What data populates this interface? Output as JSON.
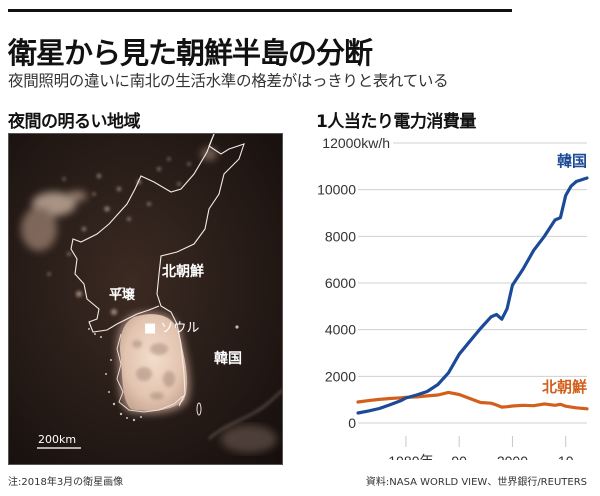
{
  "header": {
    "title": "衛星から見た朝鮮半島の分断",
    "subtitle": "夜間照明の違いに南北の生活水準の格差がはっきりと表れている"
  },
  "map_panel": {
    "title": "夜間の明るい地域",
    "labels": {
      "north_korea": "北朝鮮",
      "pyongyang": "平壌",
      "seoul": "■ ソウル",
      "south_korea": "韓国"
    },
    "scale_bar": "200km",
    "note": "注:2018年3月の衛星画像"
  },
  "chart_panel": {
    "title": "1人当たり電力消費量",
    "source": "資料:NASA WORLD VIEW、世界銀行/REUTERS"
  },
  "colors": {
    "south_korea": "#1c4a96",
    "north_korea": "#d2601c",
    "grid": "#d0d0d0"
  },
  "chart_data": {
    "type": "line",
    "title": "1人当たり電力消費量",
    "xlabel": "",
    "ylabel": "kw/h",
    "ylim": [
      0,
      12000
    ],
    "xlim": [
      1971,
      2014
    ],
    "grid": true,
    "y_ticks": [
      "0",
      "2000",
      "4000",
      "6000",
      "8000",
      "10000",
      "12000kw/h"
    ],
    "y_tick_values": [
      0,
      2000,
      4000,
      6000,
      8000,
      10000,
      12000
    ],
    "x_ticks": [
      "1980年",
      "90",
      "2000",
      "10"
    ],
    "x_tick_values": [
      1980,
      1990,
      2000,
      2010
    ],
    "legend_position": "inline-right",
    "x": [
      1971,
      1973,
      1975,
      1977,
      1979,
      1980,
      1982,
      1984,
      1986,
      1988,
      1990,
      1992,
      1994,
      1996,
      1997,
      1998,
      1999,
      2000,
      2002,
      2004,
      2006,
      2008,
      2009,
      2010,
      2011,
      2012,
      2014
    ],
    "series": [
      {
        "name": "韓国",
        "values": [
          430,
          520,
          620,
          780,
          950,
          1070,
          1200,
          1350,
          1650,
          2150,
          2950,
          3500,
          4050,
          4550,
          4650,
          4450,
          4900,
          5900,
          6600,
          7400,
          8000,
          8700,
          8800,
          9750,
          10150,
          10350,
          10500
        ]
      },
      {
        "name": "北朝鮮",
        "values": [
          900,
          960,
          1010,
          1050,
          1080,
          1100,
          1120,
          1160,
          1200,
          1310,
          1220,
          1050,
          880,
          850,
          770,
          680,
          700,
          730,
          760,
          740,
          820,
          760,
          800,
          720,
          680,
          650,
          610
        ]
      }
    ]
  }
}
